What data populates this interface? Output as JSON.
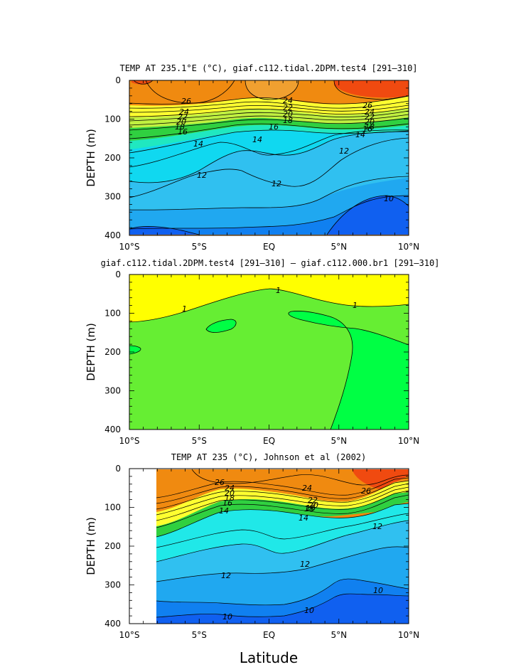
{
  "chart_data": [
    {
      "type": "contour",
      "title": "TEMP AT 235.1°E (°C), giaf.c112.tidal.2DPM.test4 [291–310]",
      "ylabel": "DEPTH (m)",
      "xlabel": "",
      "x_range": [
        -10,
        10
      ],
      "y_range": [
        0,
        400
      ],
      "y_inverted": true,
      "x_ticks": [
        "10°S",
        "5°S",
        "EQ",
        "5°N",
        "10°N"
      ],
      "y_ticks": [
        "0",
        "100",
        "200",
        "300",
        "400"
      ],
      "contour_levels": [
        10,
        11,
        12,
        13,
        14,
        15,
        16,
        17,
        18,
        19,
        20,
        21,
        22,
        23,
        24,
        25,
        26,
        27,
        28
      ],
      "contour_labels": [
        "26",
        "24",
        "22",
        "20",
        "18",
        "16",
        "14",
        "24",
        "22",
        "20",
        "18",
        "16",
        "14",
        "26",
        "24",
        "22",
        "20",
        "18",
        "16",
        "14",
        "12",
        "12",
        "12",
        "10"
      ],
      "label_values": {
        "isotherm_26_depth_m": 55,
        "isotherm_20_depth_m": 90,
        "isotherm_14_depth_m": 160,
        "isotherm_12_depth_m": 235,
        "isotherm_10_depth_m": 310
      }
    },
    {
      "type": "contour",
      "title": "giaf.c112.tidal.2DPM.test4 [291–310] – giaf.c112.000.br1 [291–310]",
      "ylabel": "DEPTH (m)",
      "xlabel": "",
      "x_range": [
        -10,
        10
      ],
      "y_range": [
        0,
        400
      ],
      "y_inverted": true,
      "x_ticks": [
        "10°S",
        "5°S",
        "EQ",
        "5°N",
        "10°N"
      ],
      "y_ticks": [
        "0",
        "100",
        "200",
        "300",
        "400"
      ],
      "contour_levels": [
        -1,
        1
      ],
      "contour_labels": [
        "1",
        "1",
        "1"
      ],
      "regions": [
        {
          "range": "> 1",
          "color": "#ffff00"
        },
        {
          "range": "-1 to 1",
          "color": "#66ee33"
        },
        {
          "range": "< -1",
          "color": "#00ff44"
        }
      ]
    },
    {
      "type": "contour",
      "title": "TEMP AT 235 (°C), Johnson et al (2002)",
      "ylabel": "DEPTH (m)",
      "xlabel": "Latitude",
      "x_range": [
        -10,
        10
      ],
      "y_range": [
        0,
        400
      ],
      "y_inverted": true,
      "data_x_range": [
        -8,
        10
      ],
      "data_y_range": [
        10,
        400
      ],
      "x_ticks": [
        "10°S",
        "5°S",
        "EQ",
        "5°N",
        "10°N"
      ],
      "y_ticks": [
        "0",
        "100",
        "200",
        "300",
        "400"
      ],
      "contour_levels": [
        10,
        11,
        12,
        13,
        14,
        15,
        16,
        17,
        18,
        19,
        20,
        21,
        22,
        23,
        24,
        25,
        26,
        27,
        28
      ],
      "contour_labels": [
        "26",
        "24",
        "20",
        "18",
        "16",
        "14",
        "24",
        "22",
        "20",
        "18",
        "16",
        "14",
        "26",
        "12",
        "12",
        "12",
        "10",
        "10",
        "10"
      ]
    }
  ]
}
